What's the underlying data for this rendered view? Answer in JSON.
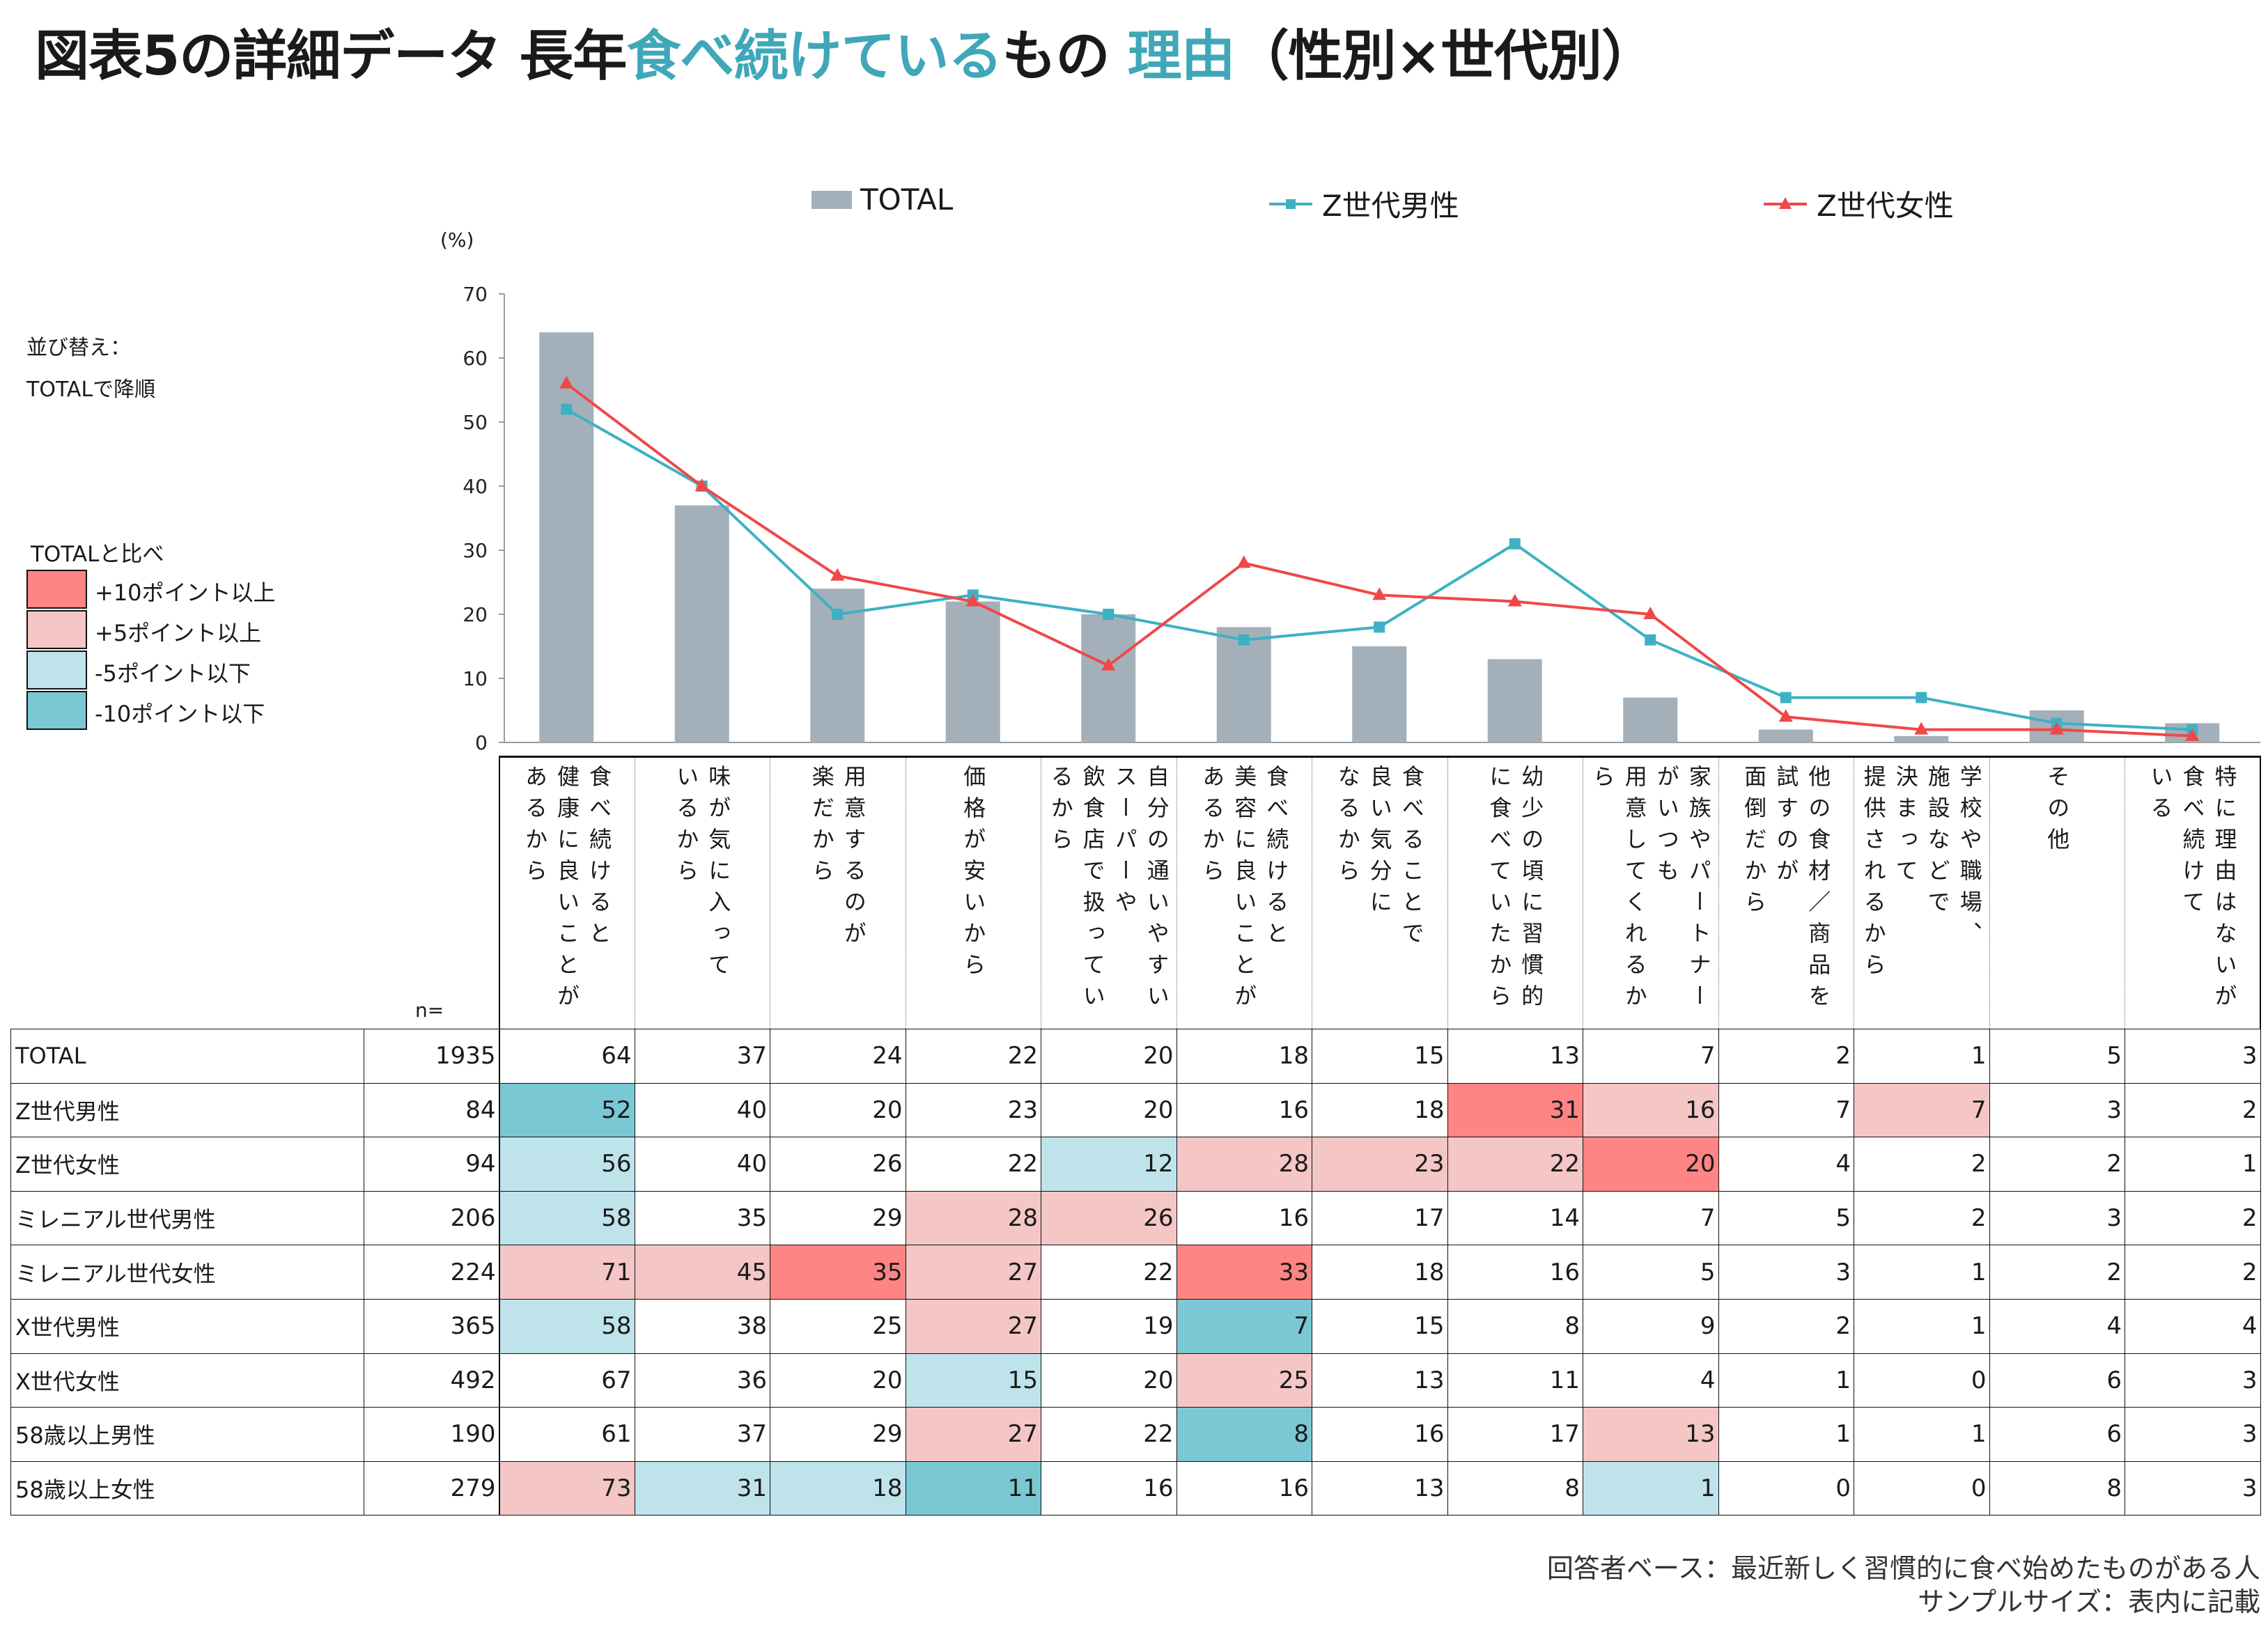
{
  "title": {
    "part1": "図表5の詳細データ 長年",
    "part2": "食べ続けている",
    "part3": "もの ",
    "part4": "理由",
    "part5": "（性別×世代別）",
    "accent_color": "#3fa7b8"
  },
  "sort_note": [
    "並び替え：",
    "TOTALで降順"
  ],
  "highlight_legend": {
    "title": "TOTALと比べ",
    "items": [
      {
        "key": "r",
        "label": "+10ポイント以上",
        "color": "#ff8585"
      },
      {
        "key": "p",
        "label": "+5ポイント以上",
        "color": "#f4c6c6"
      },
      {
        "key": "b",
        "label": "-5ポイント以下",
        "color": "#bfe3eb"
      },
      {
        "key": "t",
        "label": "-10ポイント以下",
        "color": "#7ac8d4"
      }
    ]
  },
  "chart_data": {
    "type": "bar+line",
    "unit_label": "(%)",
    "ylim": [
      0,
      70
    ],
    "yticks": [
      0,
      10,
      20,
      30,
      40,
      50,
      60,
      70
    ],
    "legend_placement": "top",
    "categories": [
      "食べ続けると\n健康に良いことが\nあるから",
      "味が気に入って\nいるから",
      "用意するのが\n楽だから",
      "価格が安いから",
      "自分の通いやすい\nスーパーや\n飲食店で扱ってい\nるから",
      "食べ続けると\n美容に良いことが\nあるから",
      "食べることで\n良い気分に\nなるから",
      "幼少の頃に習慣的\nに食べていたから",
      "家族やパートナー\nがいつも\n用意してくれるか\nら",
      "他の食材／商品を\n試すのが\n面倒だから",
      "学校や職場、\n施設などで\n決まって\n提供されるから",
      "その他",
      "特に理由はないが\n食べ続けて\nいる"
    ],
    "series": [
      {
        "name": "TOTAL",
        "kind": "bar",
        "color": "#a3b0ba",
        "values": [
          64,
          37,
          24,
          22,
          20,
          18,
          15,
          13,
          7,
          2,
          1,
          5,
          3
        ]
      },
      {
        "name": "Z世代男性",
        "kind": "line",
        "marker": "square",
        "color": "#3fb0c4",
        "values": [
          52,
          40,
          20,
          23,
          20,
          16,
          18,
          31,
          16,
          7,
          7,
          3,
          2
        ]
      },
      {
        "name": "Z世代女性",
        "kind": "line",
        "marker": "triangle",
        "color": "#f04848",
        "values": [
          56,
          40,
          26,
          22,
          12,
          28,
          23,
          22,
          20,
          4,
          2,
          2,
          1
        ]
      }
    ]
  },
  "table": {
    "n_label": "n=",
    "rows": [
      {
        "label": "TOTAL",
        "n": "1935",
        "values": [
          64,
          37,
          24,
          22,
          20,
          18,
          15,
          13,
          7,
          2,
          1,
          5,
          3
        ],
        "levels": [
          "",
          "",
          "",
          "",
          "",
          "",
          "",
          "",
          "",
          "",
          "",
          "",
          ""
        ]
      },
      {
        "label": "Z世代男性",
        "n": "84",
        "values": [
          52,
          40,
          20,
          23,
          20,
          16,
          18,
          31,
          16,
          7,
          7,
          3,
          2
        ],
        "levels": [
          "t",
          "",
          "",
          "",
          "",
          "",
          "",
          "r",
          "p",
          "",
          "p",
          "",
          ""
        ]
      },
      {
        "label": "Z世代女性",
        "n": "94",
        "values": [
          56,
          40,
          26,
          22,
          12,
          28,
          23,
          22,
          20,
          4,
          2,
          2,
          1
        ],
        "levels": [
          "b",
          "",
          "",
          "",
          "b",
          "p",
          "p",
          "p",
          "r",
          "",
          "",
          "",
          ""
        ]
      },
      {
        "label": "ミレニアル世代男性",
        "n": "206",
        "values": [
          58,
          35,
          29,
          28,
          26,
          16,
          17,
          14,
          7,
          5,
          2,
          3,
          2
        ],
        "levels": [
          "b",
          "",
          "",
          "p",
          "p",
          "",
          "",
          "",
          "",
          "",
          "",
          "",
          ""
        ]
      },
      {
        "label": "ミレニアル世代女性",
        "n": "224",
        "values": [
          71,
          45,
          35,
          27,
          22,
          33,
          18,
          16,
          5,
          3,
          1,
          2,
          2
        ],
        "levels": [
          "p",
          "p",
          "r",
          "p",
          "",
          "r",
          "",
          "",
          "",
          "",
          "",
          "",
          ""
        ]
      },
      {
        "label": "X世代男性",
        "n": "365",
        "values": [
          58,
          38,
          25,
          27,
          19,
          7,
          15,
          8,
          9,
          2,
          1,
          4,
          4
        ],
        "levels": [
          "b",
          "",
          "",
          "p",
          "",
          "t",
          "",
          "",
          "",
          "",
          "",
          "",
          ""
        ]
      },
      {
        "label": "X世代女性",
        "n": "492",
        "values": [
          67,
          36,
          20,
          15,
          20,
          25,
          13,
          11,
          4,
          1,
          0,
          6,
          3
        ],
        "levels": [
          "",
          "",
          "",
          "b",
          "",
          "p",
          "",
          "",
          "",
          "",
          "",
          "",
          ""
        ]
      },
      {
        "label": "58歳以上男性",
        "n": "190",
        "values": [
          61,
          37,
          29,
          27,
          22,
          8,
          16,
          17,
          13,
          1,
          1,
          6,
          3
        ],
        "levels": [
          "",
          "",
          "",
          "p",
          "",
          "t",
          "",
          "",
          "p",
          "",
          "",
          "",
          ""
        ]
      },
      {
        "label": "58歳以上女性",
        "n": "279",
        "values": [
          73,
          31,
          18,
          11,
          16,
          16,
          13,
          8,
          1,
          0,
          0,
          8,
          3
        ],
        "levels": [
          "p",
          "b",
          "b",
          "t",
          "",
          "",
          "",
          "",
          "b",
          "",
          "",
          "",
          ""
        ]
      }
    ]
  },
  "footnote": [
    "回答者ベース：最近新しく習慣的に食べ始めたものがある人",
    "サンプルサイズ：表内に記載"
  ]
}
